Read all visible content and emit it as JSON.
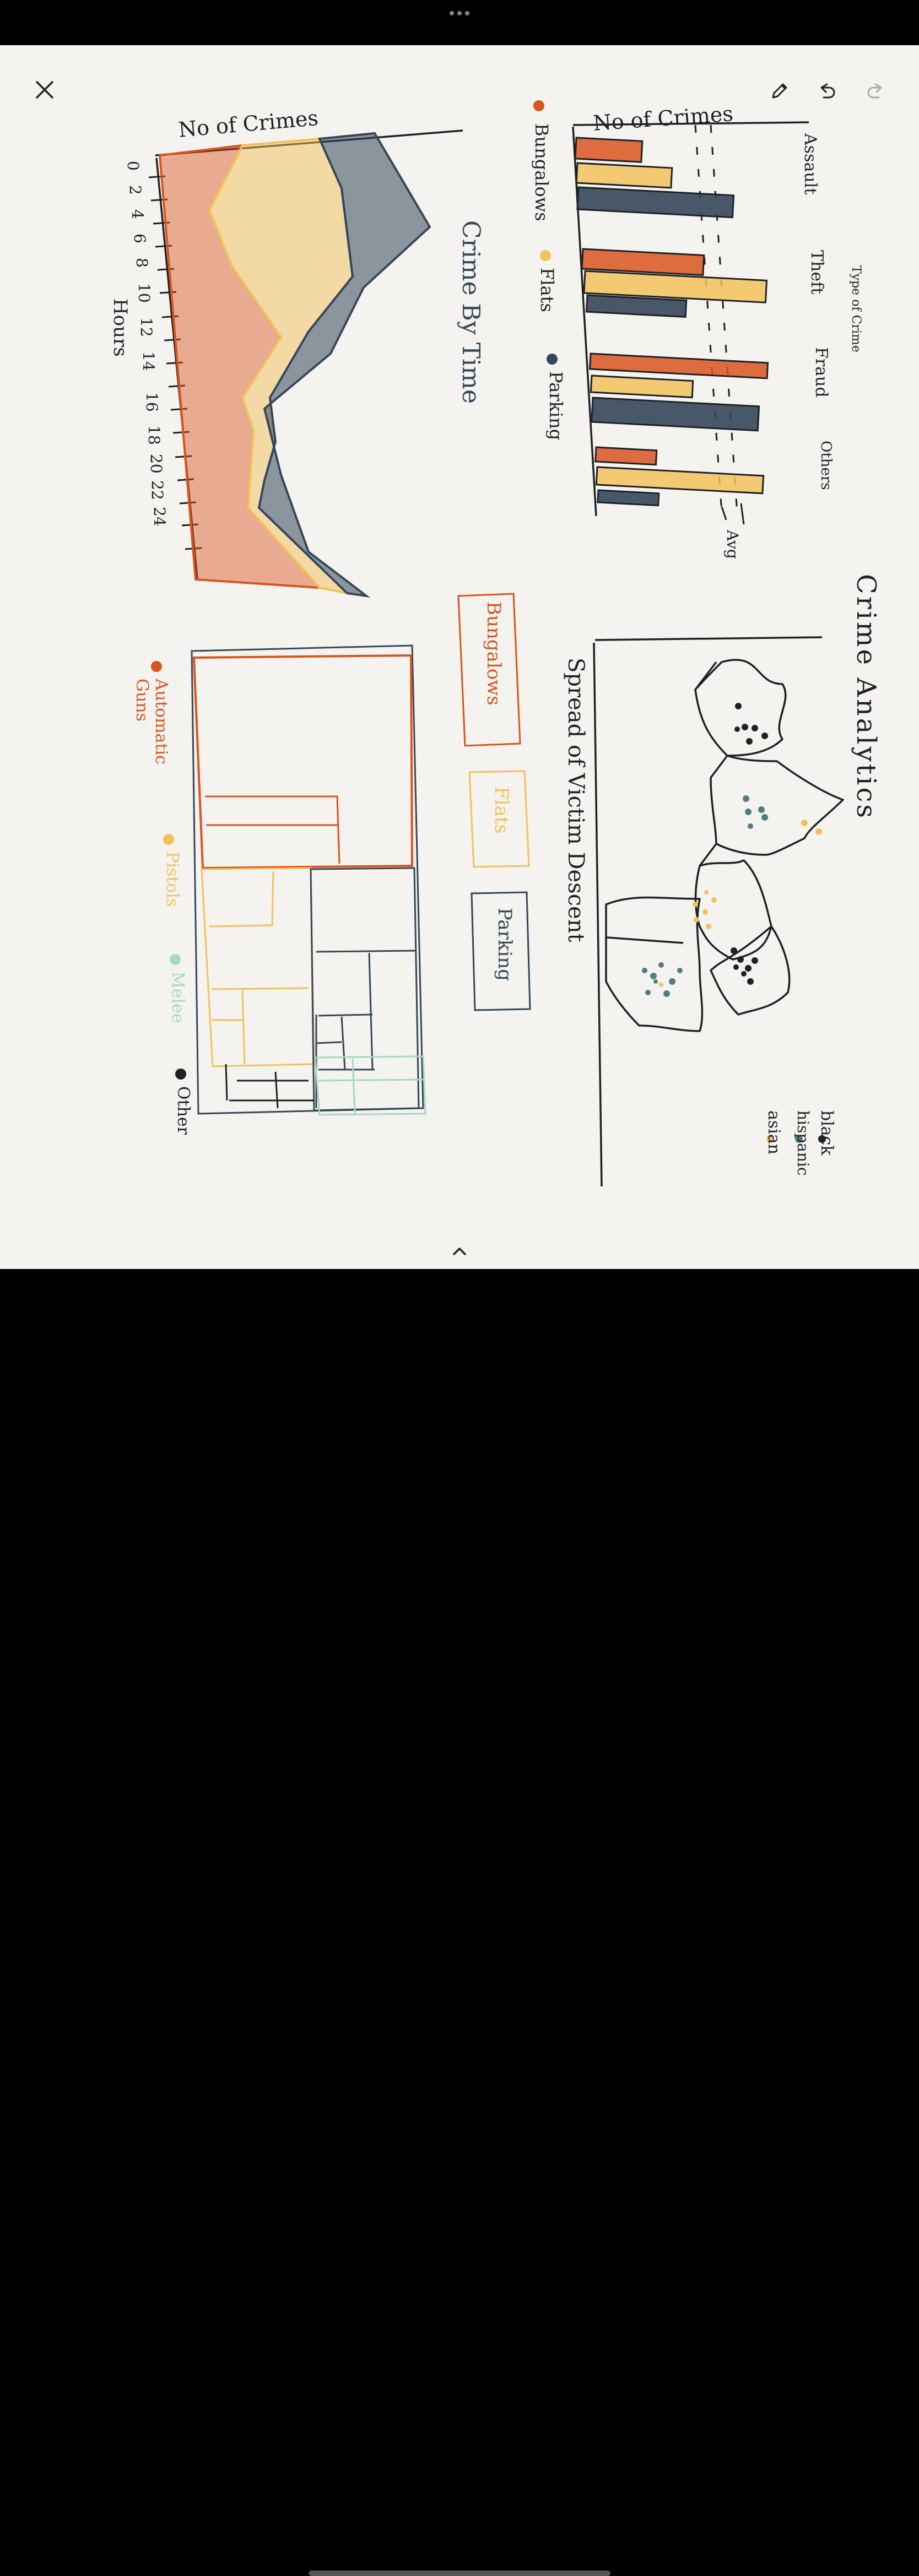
{
  "toolbar": {
    "close_icon": "close-icon",
    "pen_icon": "pencil-icon",
    "undo_icon": "undo-icon",
    "redo_icon": "redo-icon",
    "more_icon": "more-icon",
    "expand_icon": "chevron-up-icon"
  },
  "sketch": {
    "title": "Crime Analytics",
    "bar_chart": {
      "ylabel": "No of Crimes",
      "group_title": "Type of Crime",
      "categories": [
        "Assault",
        "Theft",
        "Fraud",
        "Others"
      ],
      "avg_label": "Avg",
      "legend": [
        "Bungalows",
        "Flats",
        "Parking"
      ]
    },
    "area_chart": {
      "ylabel": "No of Crimes",
      "title": "Crime By Time",
      "xlabel": "Hours",
      "ticks": [
        "0",
        "2",
        "4",
        "6",
        "8",
        "10",
        "12",
        "14",
        "16",
        "18",
        "20",
        "22",
        "24"
      ]
    },
    "map": {
      "title": "Spread of Victim Descent",
      "legend": [
        "black",
        "hispanic",
        "asian"
      ]
    },
    "filters": [
      "Bungalows",
      "Flats",
      "Parking"
    ],
    "treemap": {
      "legend": [
        "Automatic Guns",
        "Pistols",
        "Melee",
        "Other"
      ]
    }
  },
  "colors": {
    "orange": "#d9541e",
    "yellow": "#f2c25a",
    "navy": "#35475a",
    "mint": "#a7d8c0",
    "ink": "#1d2226",
    "teal": "#4e7d86"
  }
}
